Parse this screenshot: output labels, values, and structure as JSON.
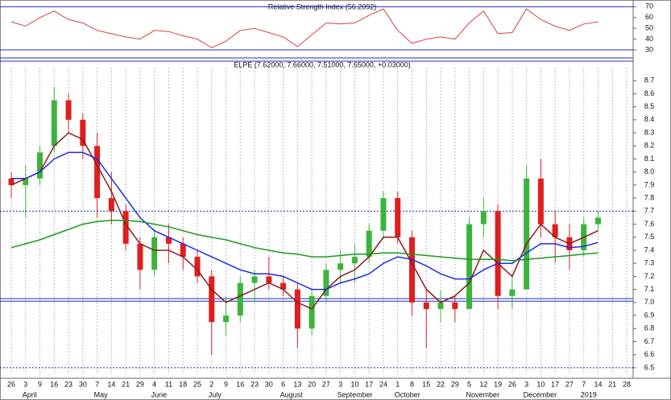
{
  "chart_data": [
    {
      "type": "line",
      "title": "Relative Strength Index (56.2092)",
      "values": [
        56,
        52,
        60,
        66,
        58,
        55,
        48,
        45,
        42,
        40,
        48,
        47,
        43,
        40,
        32,
        38,
        48,
        50,
        46,
        42,
        33,
        44,
        55,
        54,
        55,
        62,
        68,
        48,
        36,
        40,
        42,
        40,
        55,
        66,
        45,
        46,
        68,
        58,
        52,
        48,
        54,
        56,
        null,
        null
      ],
      "color": "#e03c3c",
      "ylim": [
        24,
        74
      ],
      "yticks": [
        70,
        60,
        50,
        40,
        30
      ],
      "reference_lines": [
        {
          "value": 70,
          "style": "solid"
        },
        {
          "value": 30,
          "style": "solid"
        }
      ],
      "reference_color": "#1f2fc0"
    },
    {
      "type": "candlestick",
      "title": "ELPE (7.62000, 7.66000, 7.51000, 7.65000, +0.03000)",
      "categories": [
        "26",
        "3",
        "9",
        "16",
        "23",
        "30",
        "7",
        "14",
        "21",
        "29",
        "4",
        "11",
        "18",
        "25",
        "2",
        "9",
        "16",
        "23",
        "30",
        "6",
        "13",
        "20",
        "27",
        "3",
        "10",
        "17",
        "24",
        "1",
        "8",
        "15",
        "22",
        "29",
        "5",
        "12",
        "19",
        "26",
        "3",
        "10",
        "17",
        "27",
        "7",
        "14",
        "21",
        "28"
      ],
      "month_categories": [
        null,
        "April",
        null,
        null,
        null,
        null,
        "May",
        null,
        null,
        null,
        "June",
        null,
        null,
        null,
        "July",
        null,
        null,
        null,
        null,
        "August",
        null,
        null,
        null,
        "September",
        null,
        null,
        null,
        "October",
        null,
        null,
        null,
        null,
        "November",
        null,
        null,
        null,
        "December",
        null,
        null,
        null,
        "2019",
        null,
        null,
        null
      ],
      "open": [
        7.95,
        7.9,
        7.95,
        8.2,
        8.55,
        8.4,
        8.2,
        7.8,
        7.7,
        7.45,
        7.25,
        7.5,
        7.45,
        7.35,
        7.2,
        6.85,
        6.9,
        7.15,
        7.2,
        7.15,
        7.1,
        6.8,
        7.05,
        7.25,
        7.3,
        7.35,
        7.55,
        7.8,
        7.5,
        7.0,
        6.95,
        7.0,
        6.95,
        7.6,
        7.7,
        7.05,
        7.1,
        7.95,
        7.6,
        7.5,
        7.4,
        7.6,
        null,
        null
      ],
      "high": [
        8.0,
        8.05,
        8.2,
        8.65,
        8.6,
        8.45,
        8.3,
        8.0,
        7.75,
        7.5,
        7.55,
        7.6,
        7.5,
        7.4,
        7.25,
        7.05,
        7.2,
        7.25,
        7.35,
        7.2,
        7.15,
        7.1,
        7.3,
        7.4,
        7.45,
        7.6,
        7.85,
        7.85,
        7.55,
        7.1,
        7.1,
        7.05,
        7.65,
        7.8,
        7.75,
        7.2,
        8.05,
        8.1,
        7.7,
        7.6,
        7.65,
        7.7,
        null,
        null
      ],
      "low": [
        7.8,
        7.65,
        7.9,
        8.15,
        8.3,
        8.1,
        7.65,
        7.6,
        7.4,
        7.1,
        7.2,
        7.3,
        7.25,
        7.15,
        6.6,
        6.75,
        6.85,
        7.0,
        7.1,
        7.05,
        6.65,
        6.75,
        7.0,
        7.15,
        7.15,
        7.3,
        7.5,
        7.45,
        6.9,
        6.65,
        6.85,
        6.85,
        6.95,
        7.5,
        6.95,
        6.95,
        7.1,
        7.5,
        7.3,
        7.25,
        7.35,
        7.55,
        null,
        null
      ],
      "close": [
        7.9,
        7.95,
        8.15,
        8.55,
        8.4,
        8.2,
        7.8,
        7.7,
        7.45,
        7.25,
        7.5,
        7.45,
        7.35,
        7.2,
        6.85,
        6.9,
        7.15,
        7.2,
        7.15,
        7.1,
        6.8,
        7.05,
        7.25,
        7.3,
        7.35,
        7.55,
        7.8,
        7.5,
        7.0,
        6.95,
        7.0,
        6.95,
        7.6,
        7.7,
        7.05,
        7.1,
        7.95,
        7.6,
        7.5,
        7.4,
        7.6,
        7.65,
        null,
        null
      ],
      "up_color": "#3cb43c",
      "down_color": "#e01e1e",
      "series": [
        {
          "color": "#8b1a1a",
          "values": [
            7.9,
            7.95,
            8.0,
            8.2,
            8.3,
            8.25,
            8.05,
            7.85,
            7.6,
            7.45,
            7.4,
            7.4,
            7.35,
            7.25,
            7.1,
            7.0,
            7.05,
            7.1,
            7.15,
            7.1,
            7.0,
            6.95,
            7.1,
            7.2,
            7.25,
            7.35,
            7.5,
            7.5,
            7.3,
            7.1,
            7.0,
            7.05,
            7.15,
            7.4,
            7.3,
            7.2,
            7.45,
            7.6,
            7.5,
            7.45,
            7.5,
            7.55,
            null,
            null
          ]
        },
        {
          "color": "#1a2ee0",
          "values": [
            7.95,
            7.95,
            8.0,
            8.1,
            8.15,
            8.15,
            8.1,
            7.95,
            7.8,
            7.65,
            7.55,
            7.5,
            7.45,
            7.4,
            7.35,
            7.3,
            7.25,
            7.22,
            7.22,
            7.2,
            7.15,
            7.1,
            7.1,
            7.15,
            7.18,
            7.22,
            7.3,
            7.35,
            7.33,
            7.28,
            7.22,
            7.18,
            7.18,
            7.25,
            7.3,
            7.3,
            7.38,
            7.45,
            7.45,
            7.42,
            7.43,
            7.46,
            null,
            null
          ]
        },
        {
          "color": "#1a9a1a",
          "values": [
            7.42,
            7.45,
            7.48,
            7.52,
            7.56,
            7.6,
            7.62,
            7.63,
            7.63,
            7.62,
            7.6,
            7.58,
            7.55,
            7.52,
            7.5,
            7.48,
            7.45,
            7.42,
            7.4,
            7.38,
            7.37,
            7.35,
            7.35,
            7.36,
            7.37,
            7.37,
            7.38,
            7.38,
            7.37,
            7.36,
            7.35,
            7.34,
            7.33,
            7.33,
            7.33,
            7.32,
            7.33,
            7.34,
            7.35,
            7.36,
            7.37,
            7.38,
            null,
            null
          ]
        }
      ],
      "ylim": [
        6.45,
        8.8
      ],
      "yticks": [
        8.7,
        8.6,
        8.5,
        8.4,
        8.3,
        8.2,
        8.1,
        {
          "value": 8,
          "label": "8.0"
        },
        7.9,
        7.8,
        7.7,
        7.6,
        7.5,
        7.4,
        7.3,
        7.2,
        7.1,
        {
          "value": 7,
          "label": "7.0"
        },
        6.9,
        6.8,
        6.7,
        6.6,
        6.5
      ],
      "reference_lines": [
        {
          "value": 7.7,
          "style": "dotted"
        },
        {
          "value": 7.03,
          "style": "solid"
        },
        {
          "value": 7.01,
          "style": "solid"
        },
        {
          "value": 6.5,
          "style": "dotted"
        }
      ],
      "reference_color": "#1f2fc0",
      "grid": true
    }
  ]
}
